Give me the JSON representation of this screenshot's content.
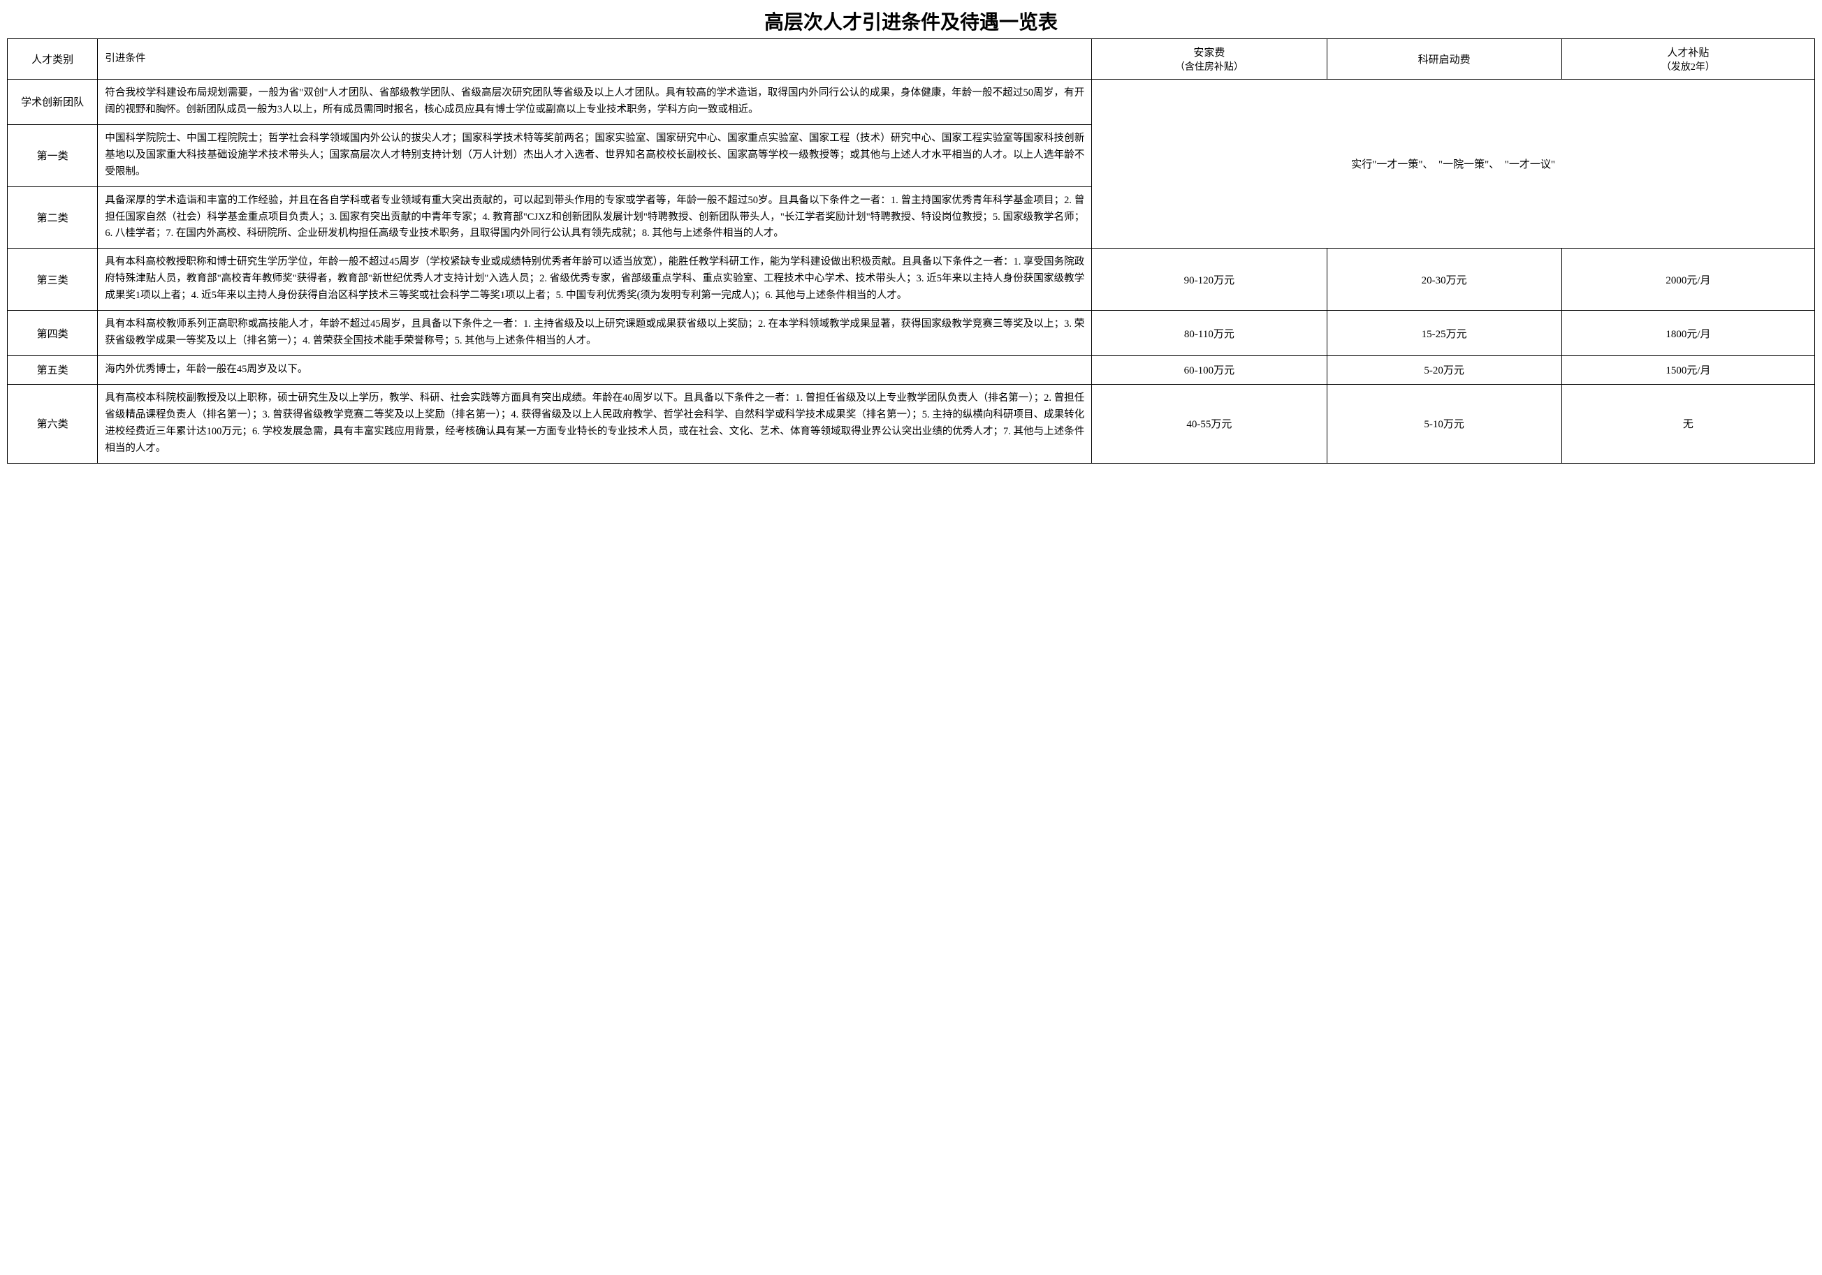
{
  "title": "高层次人才引进条件及待遇一览表",
  "headers": {
    "category": "人才类别",
    "conditions": "引进条件",
    "settlement": "安家费",
    "settlement_sub": "（含住房补贴）",
    "research": "科研启动费",
    "allowance": "人才补贴",
    "allowance_sub": "（发放2年）"
  },
  "merged_policy": "实行\"一才一策\"、　\"一院一策\"、　\"一才一议\"",
  "rows": [
    {
      "category": "学术创新团队",
      "conditions": "符合我校学科建设布局规划需要，一般为省\"双创\"人才团队、省部级教学团队、省级高层次研究团队等省级及以上人才团队。具有较高的学术造诣，取得国内外同行公认的成果，身体健康，年龄一般不超过50周岁，有开阔的视野和胸怀。创新团队成员一般为3人以上，所有成员需同时报名，核心成员应具有博士学位或副高以上专业技术职务，学科方向一致或相近。"
    },
    {
      "category": "第一类",
      "conditions": "中国科学院院士、中国工程院院士；哲学社会科学领域国内外公认的拔尖人才；国家科学技术特等奖前两名；国家实验室、国家研究中心、国家重点实验室、国家工程（技术）研究中心、国家工程实验室等国家科技创新基地以及国家重大科技基础设施学术技术带头人；国家高层次人才特别支持计划（万人计划）杰出人才入选者、世界知名高校校长副校长、国家高等学校一级教授等；或其他与上述人才水平相当的人才。以上人选年龄不受限制。"
    },
    {
      "category": "第二类",
      "conditions": "具备深厚的学术造诣和丰富的工作经验，并且在各自学科或者专业领域有重大突出贡献的，可以起到带头作用的专家或学者等，年龄一般不超过50岁。且具备以下条件之一者：1. 曾主持国家优秀青年科学基金项目；2. 曾担任国家自然（社会）科学基金重点项目负责人；3. 国家有突出贡献的中青年专家；4. 教育部\"CJXZ和创新团队发展计划\"特聘教授、创新团队带头人，\"长江学者奖励计划\"特聘教授、特设岗位教授；5. 国家级教学名师；6. 八桂学者；7. 在国内外高校、科研院所、企业研发机构担任高级专业技术职务，且取得国内外同行公认具有领先成就；8. 其他与上述条件相当的人才。"
    },
    {
      "category": "第三类",
      "conditions": "具有本科高校教授职称和博士研究生学历学位，年龄一般不超过45周岁（学校紧缺专业或成绩特别优秀者年龄可以适当放宽），能胜任教学科研工作，能为学科建设做出积极贡献。且具备以下条件之一者：1. 享受国务院政府特殊津贴人员，教育部\"高校青年教师奖\"获得者，教育部\"新世纪优秀人才支持计划\"入选人员；2. 省级优秀专家，省部级重点学科、重点实验室、工程技术中心学术、技术带头人；3. 近5年来以主持人身份获国家级教学成果奖1项以上者；4. 近5年来以主持人身份获得自治区科学技术三等奖或社会科学二等奖1项以上者；5. 中国专利优秀奖(须为发明专利第一完成人)；6. 其他与上述条件相当的人才。",
      "settlement": "90-120万元",
      "research": "20-30万元",
      "allowance": "2000元/月"
    },
    {
      "category": "第四类",
      "conditions": "具有本科高校教师系列正高职称或高技能人才，年龄不超过45周岁，且具备以下条件之一者：1. 主持省级及以上研究课题或成果获省级以上奖励；2. 在本学科领域教学成果显著，获得国家级教学竞赛三等奖及以上；3. 荣获省级教学成果一等奖及以上（排名第一）；4. 曾荣获全国技术能手荣誉称号；5. 其他与上述条件相当的人才。",
      "settlement": "80-110万元",
      "research": "15-25万元",
      "allowance": "1800元/月"
    },
    {
      "category": "第五类",
      "conditions": "海内外优秀博士，年龄一般在45周岁及以下。",
      "settlement": "60-100万元",
      "research": "5-20万元",
      "allowance": "1500元/月"
    },
    {
      "category": "第六类",
      "conditions": "具有高校本科院校副教授及以上职称，硕士研究生及以上学历，教学、科研、社会实践等方面具有突出成绩。年龄在40周岁以下。且具备以下条件之一者：1. 曾担任省级及以上专业教学团队负责人（排名第一）；2. 曾担任省级精品课程负责人（排名第一）；3. 曾获得省级教学竞赛二等奖及以上奖励（排名第一）；4. 获得省级及以上人民政府教学、哲学社会科学、自然科学或科学技术成果奖（排名第一）；5. 主持的纵横向科研项目、成果转化进校经费近三年累计达100万元；6. 学校发展急需，具有丰富实践应用背景，经考核确认具有某一方面专业特长的专业技术人员，或在社会、文化、艺术、体育等领域取得业界公认突出业绩的优秀人才；7. 其他与上述条件相当的人才。",
      "settlement": "40-55万元",
      "research": "5-10万元",
      "allowance": "无"
    }
  ]
}
